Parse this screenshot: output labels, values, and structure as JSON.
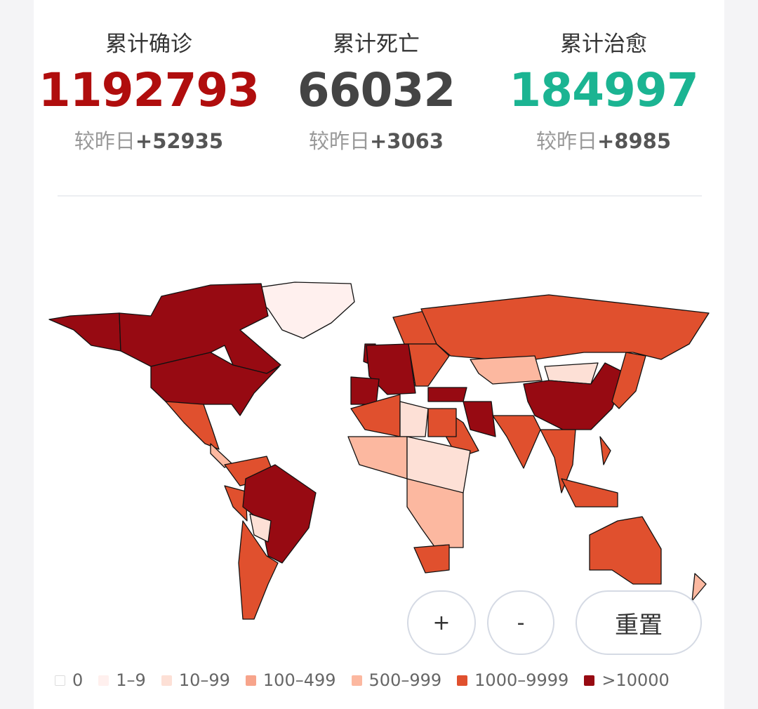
{
  "stats": [
    {
      "label": "累计确诊",
      "value": "1192793",
      "delta_prefix": "较昨日",
      "delta": "+52935",
      "color": "#b00d0d"
    },
    {
      "label": "累计死亡",
      "value": "66032",
      "delta_prefix": "较昨日",
      "delta": "+3063",
      "color": "#444444"
    },
    {
      "label": "累计治愈",
      "value": "184997",
      "delta_prefix": "较昨日",
      "delta": "+8985",
      "color": "#1bb492"
    }
  ],
  "controls": {
    "zoom_in": "+",
    "zoom_out": "-",
    "reset": "重置"
  },
  "legend": [
    {
      "label": "0",
      "color": "#ffffff"
    },
    {
      "label": "1–9",
      "color": "#fff0ee"
    },
    {
      "label": "10–99",
      "color": "#fde0d6"
    },
    {
      "label": "100–499",
      "color": "#f7a48b"
    },
    {
      "label": "500–999",
      "color": "#fcb8a0"
    },
    {
      "label": "1000–9999",
      "color": "#e0502e"
    },
    {
      "label": ">10000",
      "color": "#970a12"
    }
  ]
}
